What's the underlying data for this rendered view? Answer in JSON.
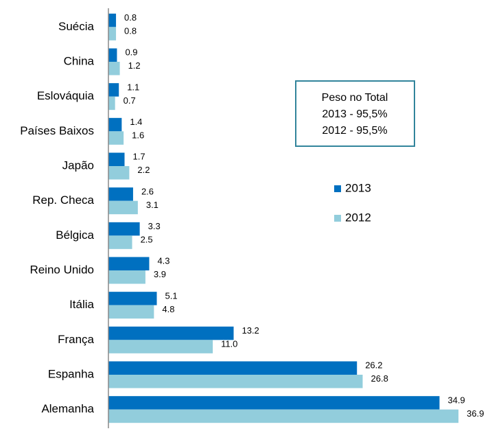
{
  "chart_data": {
    "type": "hbar",
    "categories": [
      "Suécia",
      "China",
      "Eslováquia",
      "Países Baixos",
      "Japão",
      "Rep. Checa",
      "Bélgica",
      "Reino Unido",
      "Itália",
      "França",
      "Espanha",
      "Alemanha"
    ],
    "series": [
      {
        "name": "2013",
        "color": "#0070c0",
        "values": [
          0.8,
          0.9,
          1.1,
          1.4,
          1.7,
          2.6,
          3.3,
          4.3,
          5.1,
          13.2,
          26.2,
          34.9
        ],
        "value_labels": [
          "0.8",
          "0.9",
          "1.1",
          "1.4",
          "1.7",
          "2.6",
          "3.3",
          "4.3",
          "5.1",
          "13.2",
          "26.2",
          "34.9"
        ]
      },
      {
        "name": "2012",
        "color": "#92cddc",
        "values": [
          0.8,
          1.2,
          0.7,
          1.6,
          2.2,
          3.1,
          2.5,
          3.9,
          4.8,
          11.0,
          26.8,
          36.9
        ],
        "value_labels": [
          "0.8",
          "1.2",
          "0.7",
          "1.6",
          "2.2",
          "3.1",
          "2.5",
          "3.9",
          "4.8",
          "11.0",
          "26.8",
          "36.9"
        ]
      }
    ],
    "xlim": [
      0,
      40
    ],
    "legend": "right",
    "annotations": [
      "Peso no Total",
      "2013 - 95,5%",
      "2012  - 95,5%"
    ]
  }
}
